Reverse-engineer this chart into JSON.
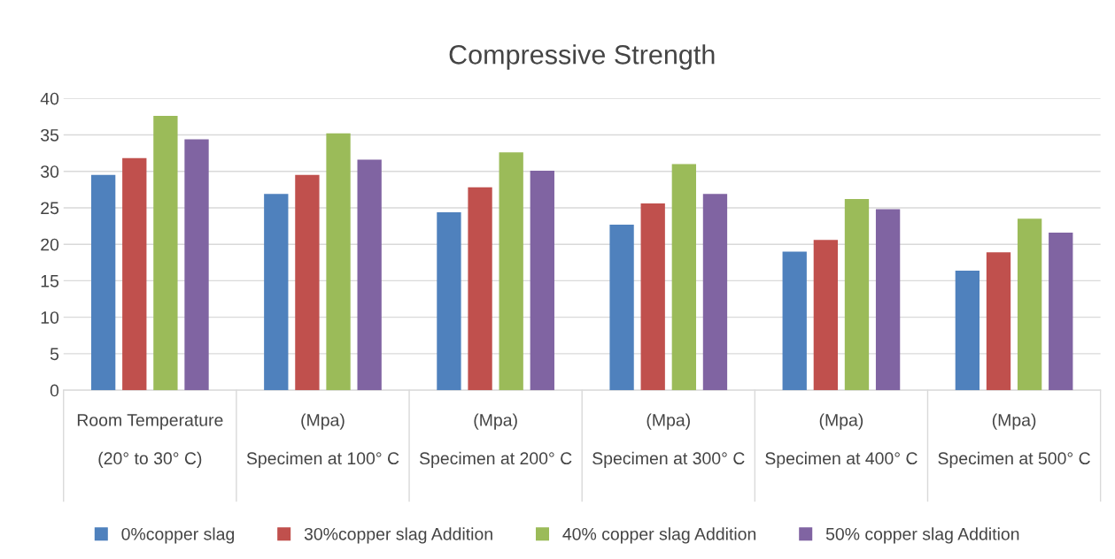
{
  "chart_data": {
    "type": "bar",
    "title": "Compressive Strength",
    "categories": [
      "Room Temperature\n(20° to 30° C)",
      "(Mpa)\nSpecimen at 100° C",
      "(Mpa)\nSpecimen at 200° C",
      "(Mpa)\nSpecimen at 300° C",
      "(Mpa)\nSpecimen at 400° C",
      "(Mpa)\nSpecimen at 500° C"
    ],
    "series": [
      {
        "name": "0%copper slag",
        "color": "#4f81bd",
        "values": [
          29.5,
          26.9,
          24.4,
          22.7,
          19.0,
          16.4
        ]
      },
      {
        "name": "30%copper slag Addition",
        "color": "#c0504d",
        "values": [
          31.8,
          29.5,
          27.8,
          25.6,
          20.6,
          18.9
        ]
      },
      {
        "name": "40% copper slag Addition",
        "color": "#9bbb59",
        "values": [
          37.6,
          35.2,
          32.6,
          31.0,
          26.2,
          23.5
        ]
      },
      {
        "name": "50% copper slag Addition",
        "color": "#8064a2",
        "values": [
          34.4,
          31.6,
          30.1,
          26.9,
          24.8,
          21.6
        ]
      }
    ],
    "ylim": [
      0,
      40
    ],
    "yticks": [
      0,
      5,
      10,
      15,
      20,
      25,
      30,
      35,
      40
    ],
    "grid": "y",
    "legend": "bottom"
  }
}
